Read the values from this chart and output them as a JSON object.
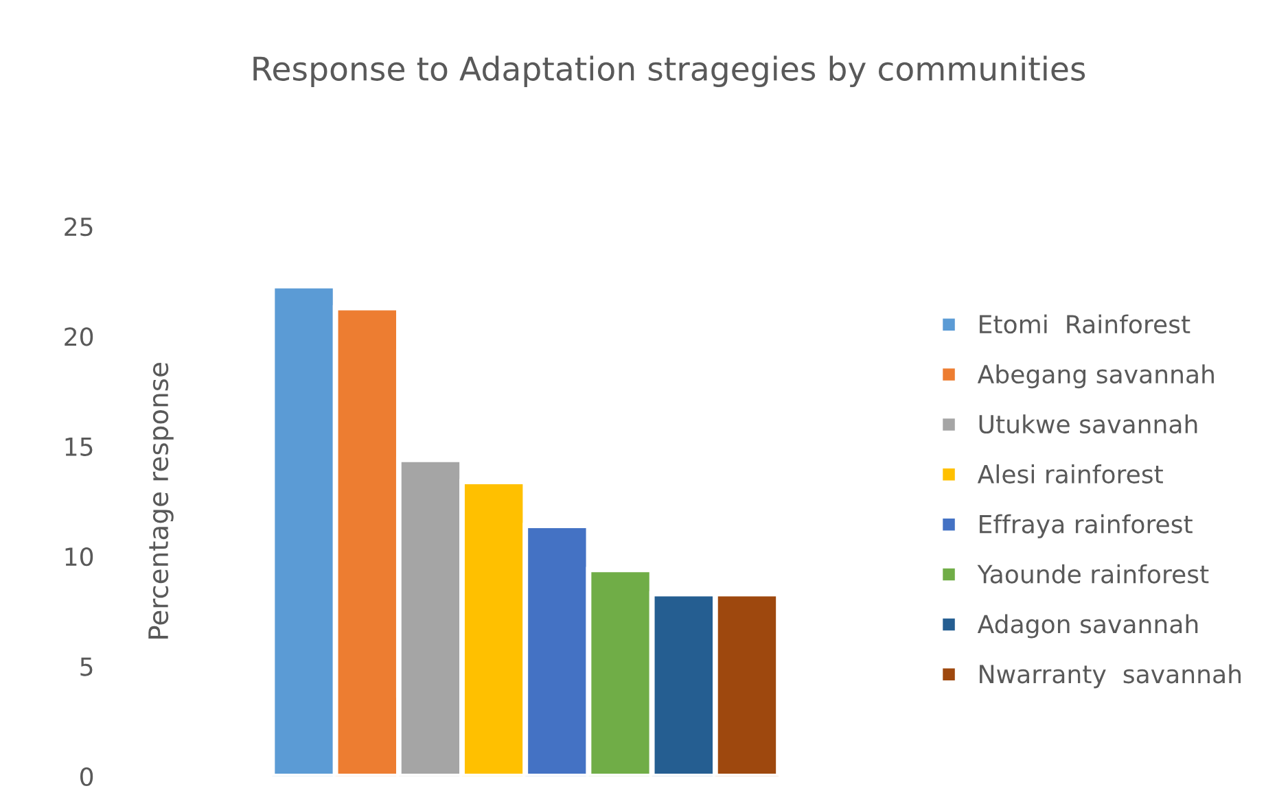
{
  "chart_data": {
    "type": "bar",
    "title": "Response to Adaptation stragegies by communities",
    "ylabel": "Percentage response",
    "categories": [
      null
    ],
    "series": [
      {
        "name": "Etomi  Rainforest",
        "color": "#5b9bd5",
        "values": [
          22.3
        ]
      },
      {
        "name": "Abegang savannah",
        "color": "#ed7d31",
        "values": [
          21.3
        ]
      },
      {
        "name": "Utukwe savannah",
        "color": "#a5a5a5",
        "values": [
          14.4
        ]
      },
      {
        "name": "Alesi rainforest",
        "color": "#ffc000",
        "values": [
          13.4
        ]
      },
      {
        "name": "Effraya rainforest",
        "color": "#4472c4",
        "values": [
          11.4
        ]
      },
      {
        "name": "Yaounde rainforest",
        "color": "#70ad47",
        "values": [
          9.4
        ]
      },
      {
        "name": "Adagon savannah",
        "color": "#255e91",
        "values": [
          8.3
        ]
      },
      {
        "name": "Nwarranty  savannah",
        "color": "#9e480e",
        "values": [
          8.3
        ]
      }
    ],
    "ylim": [
      0,
      25
    ],
    "yticks": [
      0,
      5,
      10,
      15,
      20,
      25
    ],
    "grid": false,
    "legend": "right",
    "tick_labels": "y"
  }
}
